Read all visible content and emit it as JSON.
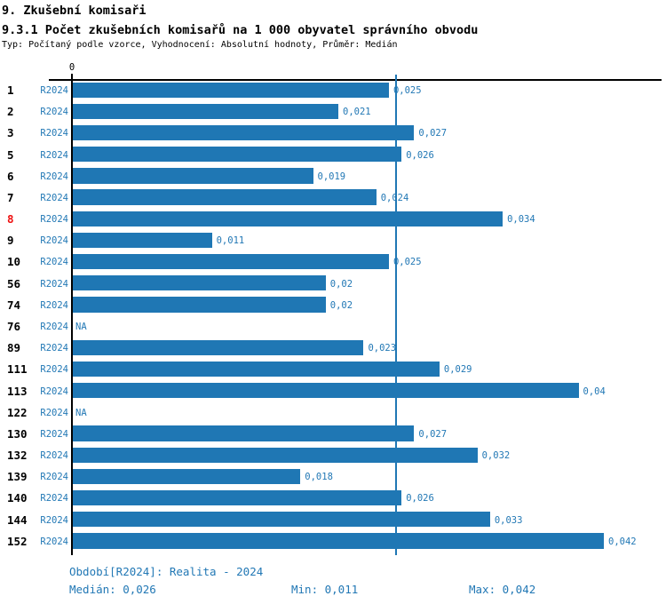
{
  "header": {
    "title": "9. Zkušební komisaři",
    "subtitle": "9.3.1 Počet zkušebních komisařů na 1 000 obyvatel správního obvodu",
    "meta": "Typ: Počítaný podle vzorce, Vyhodnocení: Absolutní hodnoty, Průměr: Medián"
  },
  "axis": {
    "zero_label": "0"
  },
  "colors": {
    "bar": "#1f77b4",
    "median_line": "#1f77b4",
    "label_blue": "#2278b5",
    "highlight_red": "#ee1111",
    "axis_black": "#000000"
  },
  "chart_data": {
    "type": "bar",
    "orientation": "horizontal",
    "title": "9.3.1 Počet zkušebních komisařů na 1 000 obyvatel správního obvodu",
    "period": "R2024",
    "categories": [
      "1",
      "2",
      "3",
      "5",
      "6",
      "7",
      "8",
      "9",
      "10",
      "56",
      "74",
      "76",
      "89",
      "111",
      "113",
      "122",
      "130",
      "132",
      "139",
      "140",
      "144",
      "152"
    ],
    "values": [
      0.025,
      0.021,
      0.027,
      0.026,
      0.019,
      0.024,
      0.034,
      0.011,
      0.025,
      0.02,
      0.02,
      null,
      0.023,
      0.029,
      0.04,
      null,
      0.027,
      0.032,
      0.018,
      0.026,
      0.033,
      0.042
    ],
    "value_labels": [
      "0,025",
      "0,021",
      "0,027",
      "0,026",
      "0,019",
      "0,024",
      "0,034",
      "0,011",
      "0,025",
      "0,02",
      "0,02",
      "NA",
      "0,023",
      "0,029",
      "0,04",
      "NA",
      "0,027",
      "0,032",
      "0,018",
      "0,026",
      "0,033",
      "0,042"
    ],
    "highlighted_category": "8",
    "xlim": [
      0,
      0.042
    ],
    "median_line_value": 0.0255,
    "grid": false,
    "legend": "none"
  },
  "footer": {
    "period": "Období[R2024]: Realita - 2024",
    "median": "Medián: 0,026",
    "min": "Min: 0,011",
    "max": "Max: 0,042"
  }
}
